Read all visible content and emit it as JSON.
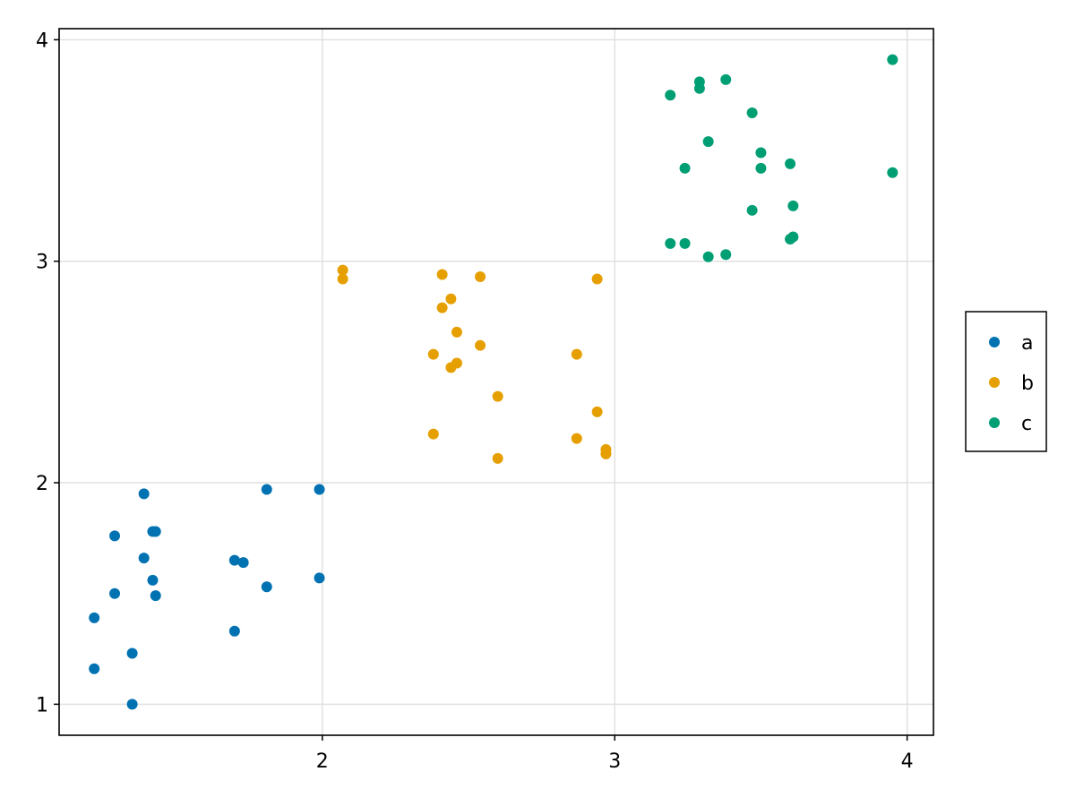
{
  "chart_data": {
    "type": "scatter",
    "title": "",
    "xlabel": "",
    "ylabel": "",
    "xlim": [
      1.1,
      4.09
    ],
    "ylim": [
      0.86,
      4.05
    ],
    "x_ticks": [
      2,
      3,
      4
    ],
    "y_ticks": [
      1,
      2,
      3,
      4
    ],
    "x_tick_labels": [
      "2",
      "3",
      "4"
    ],
    "y_tick_labels": [
      "1",
      "2",
      "3",
      "4"
    ],
    "grid": true,
    "legend_position": "right",
    "series": [
      {
        "name": "a",
        "color": "#0072b2",
        "points": [
          [
            1.39,
            1.95
          ],
          [
            1.22,
            1.39
          ],
          [
            1.22,
            1.16
          ],
          [
            1.29,
            1.76
          ],
          [
            1.29,
            1.5
          ],
          [
            1.35,
            1.23
          ],
          [
            1.35,
            1.0
          ],
          [
            1.39,
            1.66
          ],
          [
            1.42,
            1.78
          ],
          [
            1.43,
            1.78
          ],
          [
            1.42,
            1.56
          ],
          [
            1.43,
            1.49
          ],
          [
            1.7,
            1.65
          ],
          [
            1.73,
            1.64
          ],
          [
            1.7,
            1.33
          ],
          [
            1.81,
            1.97
          ],
          [
            1.81,
            1.53
          ],
          [
            1.99,
            1.97
          ],
          [
            1.99,
            1.57
          ]
        ]
      },
      {
        "name": "b",
        "color": "#e69f00",
        "points": [
          [
            2.07,
            2.96
          ],
          [
            2.07,
            2.92
          ],
          [
            2.41,
            2.94
          ],
          [
            2.54,
            2.93
          ],
          [
            2.44,
            2.83
          ],
          [
            2.41,
            2.79
          ],
          [
            2.46,
            2.68
          ],
          [
            2.54,
            2.62
          ],
          [
            2.38,
            2.58
          ],
          [
            2.46,
            2.54
          ],
          [
            2.44,
            2.52
          ],
          [
            2.6,
            2.39
          ],
          [
            2.38,
            2.22
          ],
          [
            2.6,
            2.11
          ],
          [
            2.94,
            2.92
          ],
          [
            2.87,
            2.58
          ],
          [
            2.94,
            2.32
          ],
          [
            2.87,
            2.2
          ],
          [
            2.97,
            2.15
          ],
          [
            2.97,
            2.13
          ]
        ]
      },
      {
        "name": "c",
        "color": "#009e73",
        "points": [
          [
            3.19,
            3.75
          ],
          [
            3.29,
            3.81
          ],
          [
            3.29,
            3.78
          ],
          [
            3.38,
            3.82
          ],
          [
            3.47,
            3.67
          ],
          [
            3.32,
            3.54
          ],
          [
            3.5,
            3.49
          ],
          [
            3.24,
            3.42
          ],
          [
            3.5,
            3.42
          ],
          [
            3.6,
            3.44
          ],
          [
            3.95,
            3.91
          ],
          [
            3.95,
            3.4
          ],
          [
            3.47,
            3.23
          ],
          [
            3.61,
            3.25
          ],
          [
            3.61,
            3.11
          ],
          [
            3.6,
            3.1
          ],
          [
            3.19,
            3.08
          ],
          [
            3.24,
            3.08
          ],
          [
            3.32,
            3.02
          ],
          [
            3.38,
            3.03
          ]
        ]
      }
    ]
  }
}
